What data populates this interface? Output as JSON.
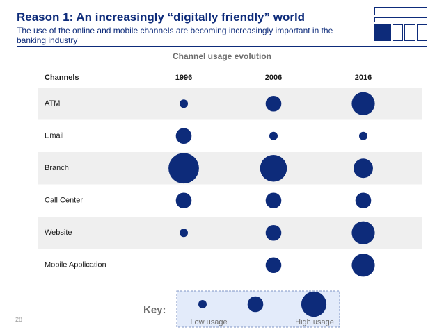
{
  "header": {
    "title": "Reason 1: An increasingly “digitally friendly” world",
    "subtitle": "The use of the online and mobile channels are becoming increasingly important in the banking industry"
  },
  "page_number": "28",
  "colors": {
    "accent": "#0d2b7a",
    "row_band": "#efefef",
    "key_bg": "#e3ebfa"
  },
  "chart_data": {
    "type": "table",
    "title": "Channel usage evolution",
    "header_label": "Channels",
    "columns": [
      "1996",
      "2006",
      "2016"
    ],
    "scale": "usage level 1 (low) to 4 (high), shown as circle size",
    "rows": [
      {
        "channel": "ATM",
        "values": [
          1,
          2,
          3
        ]
      },
      {
        "channel": "Email",
        "values": [
          2,
          1,
          1
        ]
      },
      {
        "channel": "Branch",
        "values": [
          4,
          3.5,
          2.5
        ]
      },
      {
        "channel": "Call Center",
        "values": [
          2,
          2,
          2
        ]
      },
      {
        "channel": "Website",
        "values": [
          1,
          2,
          3
        ]
      },
      {
        "channel": "Mobile Application",
        "values": [
          null,
          2,
          3
        ]
      }
    ],
    "key": {
      "label": "Key:",
      "low_label": "Low usage",
      "high_label": "High  usage",
      "levels": [
        1,
        2,
        3
      ]
    }
  }
}
